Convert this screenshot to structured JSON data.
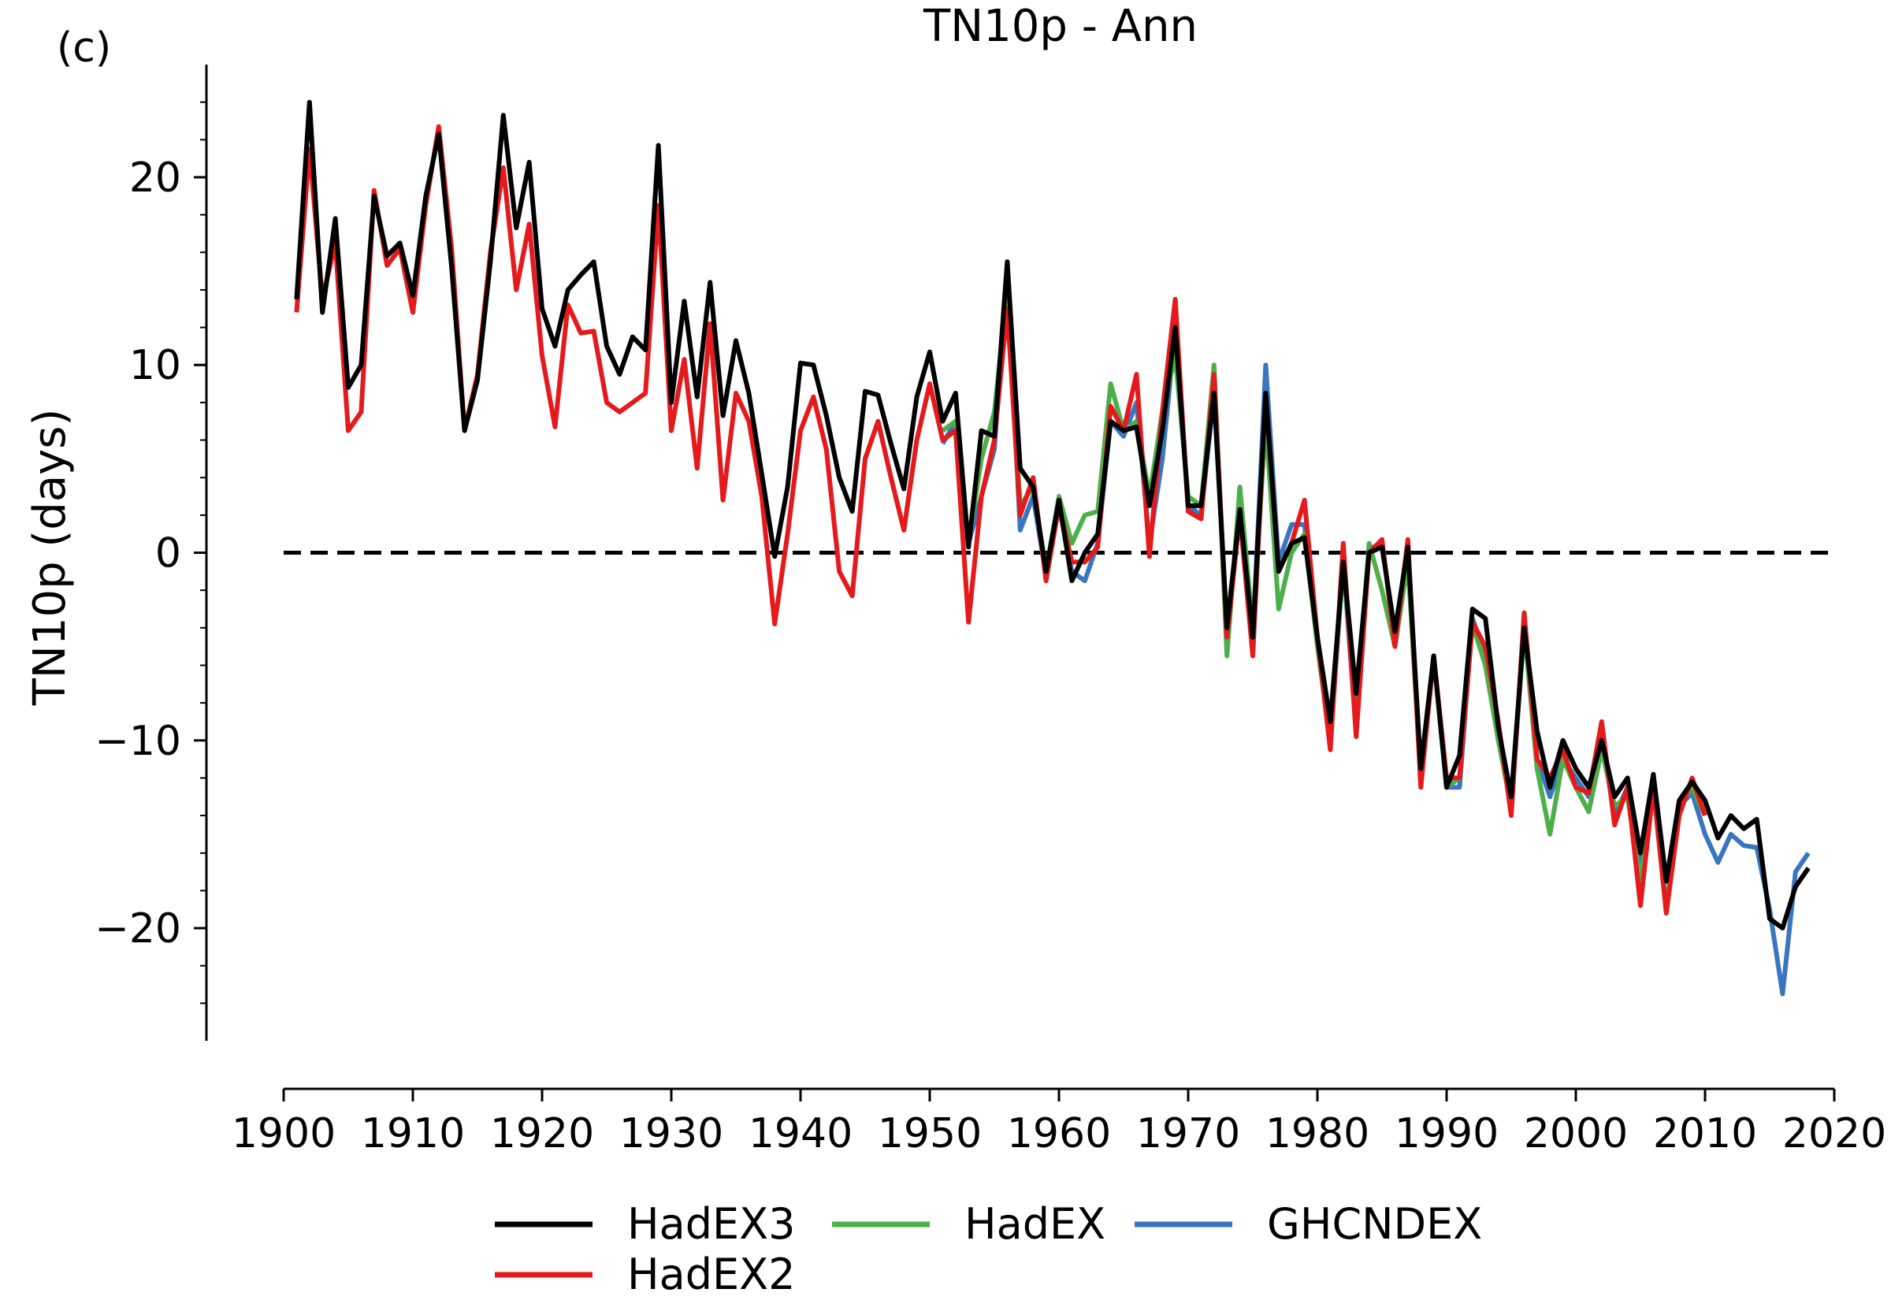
{
  "panel_label": "(c)",
  "chart_data": {
    "type": "line",
    "title": "TN10p - Ann",
    "xlabel": "",
    "ylabel": "TN10p (days)",
    "xlim": [
      1900,
      2020
    ],
    "ylim": [
      -26,
      26
    ],
    "xticks": [
      1900,
      1910,
      1920,
      1930,
      1940,
      1950,
      1960,
      1970,
      1980,
      1990,
      2000,
      2010,
      2020
    ],
    "yticks": [
      -20,
      -10,
      0,
      10,
      20
    ],
    "ytick_labels": [
      "−20",
      "−10",
      "0",
      "10",
      "20"
    ],
    "reference_line": 0,
    "legend_position": "bottom-center",
    "series": [
      {
        "name": "GHCNDEX",
        "color": "#3a76c0",
        "x": [
          1951,
          1952,
          1953,
          1954,
          1955,
          1956,
          1957,
          1958,
          1959,
          1960,
          1961,
          1962,
          1963,
          1964,
          1965,
          1966,
          1967,
          1968,
          1969,
          1970,
          1971,
          1972,
          1973,
          1974,
          1975,
          1976,
          1977,
          1978,
          1979,
          1980,
          1981,
          1982,
          1983,
          1984,
          1985,
          1986,
          1987,
          1988,
          1989,
          1990,
          1991,
          1992,
          1993,
          1994,
          1995,
          1996,
          1997,
          1998,
          1999,
          2000,
          2001,
          2002,
          2003,
          2004,
          2005,
          2006,
          2007,
          2008,
          2009,
          2010,
          2011,
          2012,
          2013,
          2014,
          2015,
          2016,
          2017,
          2018
        ],
        "y": [
          5.8,
          7.0,
          0.5,
          3.0,
          5.5,
          15.0,
          1.2,
          3.0,
          -1.2,
          2.5,
          -1.0,
          -1.5,
          0.5,
          7.0,
          6.2,
          8.0,
          0.5,
          5.0,
          11.8,
          2.5,
          2.0,
          8.5,
          -4.0,
          2.0,
          -4.5,
          10.0,
          -0.5,
          1.5,
          1.5,
          -4.5,
          -10.2,
          -0.5,
          -9.5,
          0.2,
          0.5,
          -4.5,
          0.5,
          -12.0,
          -5.5,
          -12.5,
          -12.5,
          -3.5,
          -5.5,
          -9.5,
          -13.5,
          -4.0,
          -11.0,
          -13.0,
          -11.0,
          -12.0,
          -13.0,
          -10.0,
          -14.0,
          -12.5,
          -17.0,
          -12.0,
          -19.0,
          -13.5,
          -12.8,
          -15.0,
          -16.5,
          -15.0,
          -15.6,
          -15.7,
          -19.0,
          -23.5,
          -17.0,
          -16.0
        ]
      },
      {
        "name": "HadEX",
        "color": "#4daf4a",
        "x": [
          1951,
          1952,
          1953,
          1954,
          1955,
          1956,
          1957,
          1958,
          1959,
          1960,
          1961,
          1962,
          1963,
          1964,
          1965,
          1966,
          1967,
          1968,
          1969,
          1970,
          1971,
          1972,
          1973,
          1974,
          1975,
          1976,
          1977,
          1978,
          1979,
          1980,
          1981,
          1982,
          1983,
          1984,
          1985,
          1986,
          1987,
          1988,
          1989,
          1990,
          1991,
          1992,
          1993,
          1994,
          1995,
          1996,
          1997,
          1998,
          1999,
          2000,
          2001,
          2002,
          2003,
          2004,
          2005,
          2006,
          2007,
          2008,
          2009,
          2010
        ],
        "y": [
          6.5,
          7.0,
          0.5,
          5.0,
          7.5,
          14.0,
          2.5,
          3.5,
          -1.0,
          3.0,
          0.5,
          2.0,
          2.2,
          9.0,
          6.5,
          7.0,
          3.0,
          7.5,
          10.5,
          3.0,
          2.5,
          10.0,
          -5.5,
          3.5,
          -4.0,
          7.0,
          -3.0,
          0.0,
          1.0,
          -5.0,
          -10.0,
          -0.5,
          -8.5,
          0.5,
          -2.0,
          -5.0,
          -0.5,
          -12.0,
          -5.5,
          -12.5,
          -12.0,
          -3.8,
          -6.0,
          -10.0,
          -13.5,
          -4.0,
          -11.5,
          -15.0,
          -11.0,
          -12.5,
          -13.8,
          -10.5,
          -13.5,
          -13.0,
          -17.5,
          -12.5,
          -19.0,
          -13.5,
          -12.5,
          -14.0
        ]
      },
      {
        "name": "HadEX2",
        "color": "#e41a1c",
        "x": [
          1901,
          1902,
          1903,
          1904,
          1905,
          1906,
          1907,
          1908,
          1909,
          1910,
          1911,
          1912,
          1913,
          1914,
          1915,
          1916,
          1917,
          1918,
          1919,
          1920,
          1921,
          1922,
          1923,
          1924,
          1925,
          1926,
          1927,
          1928,
          1929,
          1930,
          1931,
          1932,
          1933,
          1934,
          1935,
          1936,
          1937,
          1938,
          1939,
          1940,
          1941,
          1942,
          1943,
          1944,
          1945,
          1946,
          1947,
          1948,
          1949,
          1950,
          1951,
          1952,
          1953,
          1954,
          1955,
          1956,
          1957,
          1958,
          1959,
          1960,
          1961,
          1962,
          1963,
          1964,
          1965,
          1966,
          1967,
          1968,
          1969,
          1970,
          1971,
          1972,
          1973,
          1974,
          1975,
          1976,
          1977,
          1978,
          1979,
          1980,
          1981,
          1982,
          1983,
          1984,
          1985,
          1986,
          1987,
          1988,
          1989,
          1990,
          1991,
          1992,
          1993,
          1994,
          1995,
          1996,
          1997,
          1998,
          1999,
          2000,
          2001,
          2002,
          2003,
          2004,
          2005,
          2006,
          2007,
          2008,
          2009,
          2010
        ],
        "y": [
          12.8,
          21.5,
          13.5,
          16.5,
          6.5,
          7.5,
          19.3,
          15.3,
          16.2,
          12.8,
          18.5,
          22.7,
          16.2,
          6.5,
          9.5,
          16.0,
          20.5,
          14.0,
          17.5,
          10.5,
          6.7,
          13.2,
          11.7,
          11.8,
          8.0,
          7.5,
          8.0,
          8.5,
          18.5,
          6.5,
          10.3,
          4.5,
          12.2,
          2.8,
          8.5,
          7.0,
          3.0,
          -3.8,
          1.0,
          6.5,
          8.3,
          5.5,
          -1.0,
          -2.3,
          5.0,
          7.0,
          4.0,
          1.2,
          6.0,
          9.0,
          6.0,
          6.5,
          -3.7,
          3.0,
          6.0,
          13.0,
          2.0,
          4.0,
          -1.5,
          2.5,
          -0.5,
          -0.5,
          0.3,
          7.8,
          6.5,
          9.5,
          -0.2,
          7.5,
          13.5,
          2.2,
          1.8,
          9.5,
          -4.5,
          2.0,
          -5.5,
          8.5,
          -1.0,
          0.5,
          2.8,
          -4.5,
          -10.5,
          0.5,
          -9.8,
          0.0,
          0.7,
          -5.0,
          0.7,
          -12.5,
          -5.5,
          -12.0,
          -12.0,
          -3.7,
          -5.0,
          -9.0,
          -14.0,
          -3.2,
          -11.0,
          -12.0,
          -10.5,
          -12.5,
          -12.8,
          -9.0,
          -14.5,
          -12.5,
          -18.8,
          -12.5,
          -19.2,
          -14.0,
          -12.0,
          -14.0
        ]
      },
      {
        "name": "HadEX3",
        "color": "#000000",
        "x": [
          1901,
          1902,
          1903,
          1904,
          1905,
          1906,
          1907,
          1908,
          1909,
          1910,
          1911,
          1912,
          1913,
          1914,
          1915,
          1916,
          1917,
          1918,
          1919,
          1920,
          1921,
          1922,
          1923,
          1924,
          1925,
          1926,
          1927,
          1928,
          1929,
          1930,
          1931,
          1932,
          1933,
          1934,
          1935,
          1936,
          1937,
          1938,
          1939,
          1940,
          1941,
          1942,
          1943,
          1944,
          1945,
          1946,
          1947,
          1948,
          1949,
          1950,
          1951,
          1952,
          1953,
          1954,
          1955,
          1956,
          1957,
          1958,
          1959,
          1960,
          1961,
          1962,
          1963,
          1964,
          1965,
          1966,
          1967,
          1968,
          1969,
          1970,
          1971,
          1972,
          1973,
          1974,
          1975,
          1976,
          1977,
          1978,
          1979,
          1980,
          1981,
          1982,
          1983,
          1984,
          1985,
          1986,
          1987,
          1988,
          1989,
          1990,
          1991,
          1992,
          1993,
          1994,
          1995,
          1996,
          1997,
          1998,
          1999,
          2000,
          2001,
          2002,
          2003,
          2004,
          2005,
          2006,
          2007,
          2008,
          2009,
          2010,
          2011,
          2012,
          2013,
          2014,
          2015,
          2016,
          2017,
          2018
        ],
        "y": [
          13.5,
          24.0,
          12.8,
          17.8,
          8.8,
          10.0,
          19.0,
          15.8,
          16.5,
          13.7,
          19.0,
          22.3,
          15.2,
          6.5,
          9.2,
          15.5,
          23.3,
          17.3,
          20.8,
          13.0,
          11.0,
          14.0,
          14.8,
          15.5,
          11.0,
          9.5,
          11.5,
          10.8,
          21.7,
          8.0,
          13.4,
          8.3,
          14.4,
          7.3,
          11.3,
          8.5,
          4.2,
          -0.2,
          3.5,
          10.1,
          10.0,
          7.3,
          4.0,
          2.2,
          8.6,
          8.4,
          5.8,
          3.4,
          8.3,
          10.7,
          7.0,
          8.5,
          0.3,
          6.5,
          6.2,
          15.5,
          4.5,
          3.5,
          -1.0,
          2.8,
          -1.5,
          0.0,
          1.0,
          7.0,
          6.5,
          6.7,
          2.5,
          6.5,
          12.0,
          2.5,
          2.5,
          8.5,
          -4.0,
          2.3,
          -4.5,
          8.5,
          -1.0,
          0.5,
          0.8,
          -4.5,
          -9.0,
          -0.5,
          -7.5,
          0.0,
          0.3,
          -4.2,
          0.3,
          -11.5,
          -5.5,
          -12.5,
          -10.8,
          -3.0,
          -3.5,
          -9.3,
          -13.0,
          -4.0,
          -9.5,
          -12.5,
          -10.0,
          -11.5,
          -12.5,
          -10.0,
          -13.0,
          -12.0,
          -16.0,
          -11.8,
          -17.5,
          -13.2,
          -12.2,
          -13.2,
          -15.2,
          -14.0,
          -14.7,
          -14.2,
          -19.5,
          -20.0,
          -17.8,
          -16.8
        ]
      }
    ],
    "legend": [
      {
        "label": "HadEX3",
        "color": "#000000"
      },
      {
        "label": "HadEX",
        "color": "#4daf4a"
      },
      {
        "label": "GHCNDEX",
        "color": "#3a76c0"
      },
      {
        "label": "HadEX2",
        "color": "#e41a1c"
      }
    ]
  }
}
